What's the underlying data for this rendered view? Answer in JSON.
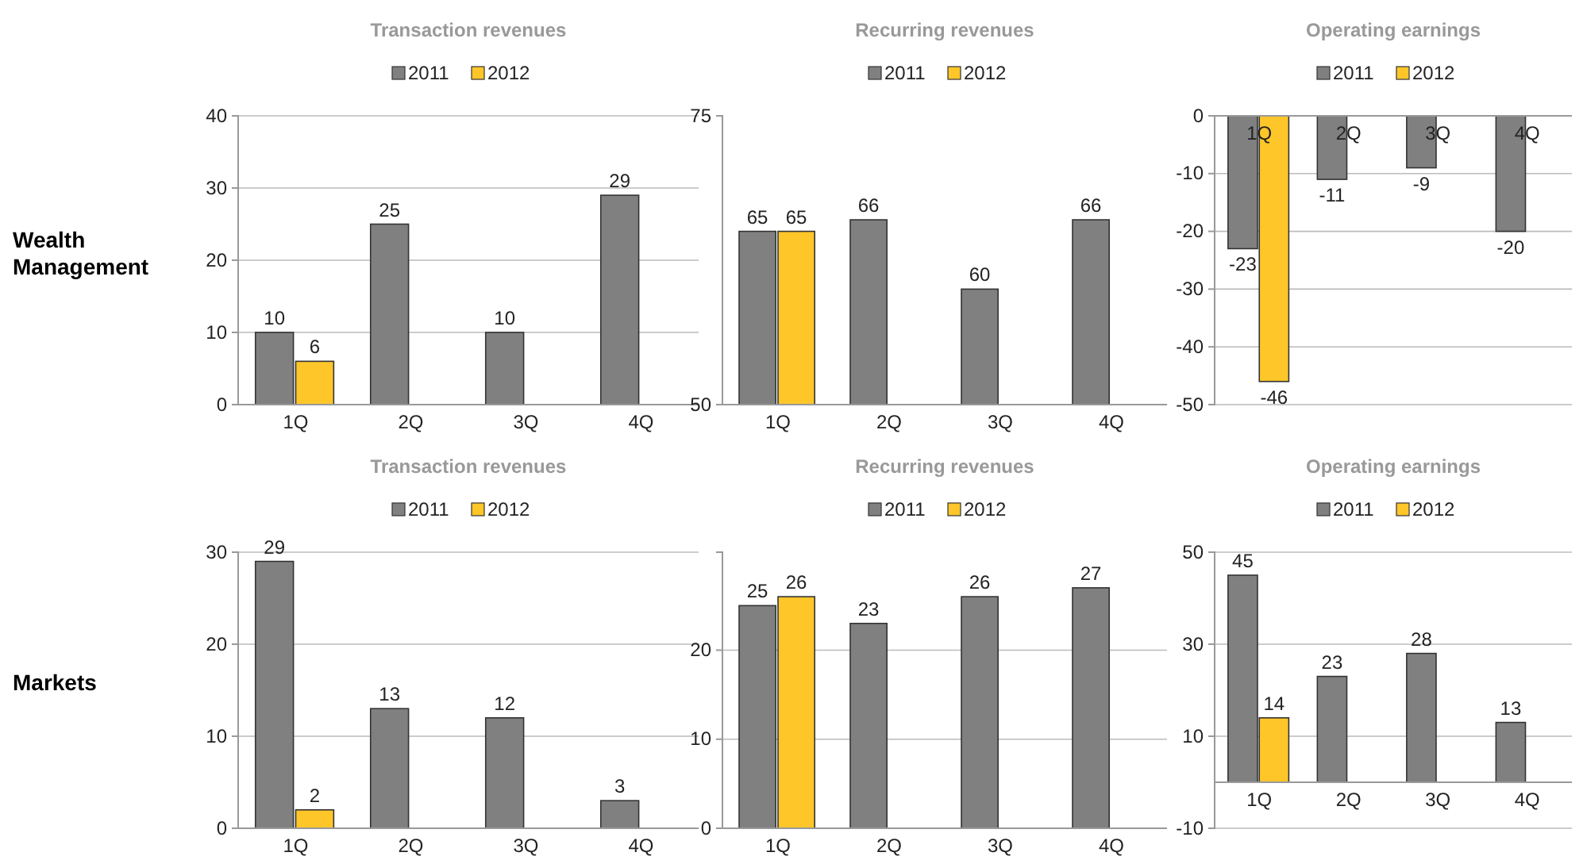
{
  "chart_data": [
    {
      "type": "bar",
      "title": "Transaction revenues",
      "categories": [
        "1Q",
        "2Q",
        "3Q",
        "4Q"
      ],
      "series": [
        {
          "name": "2011",
          "color": "#808080",
          "values": [
            10,
            25,
            10,
            29
          ]
        },
        {
          "name": "2012",
          "color": "#ffc62a",
          "values": [
            6,
            null,
            null,
            null
          ]
        }
      ],
      "ylim": [
        0,
        40
      ],
      "yticks": [
        0,
        10,
        20,
        30,
        40
      ],
      "grid": "y",
      "legend": "top",
      "data_labels": true,
      "annotations": [
        "Wealth Management"
      ]
    },
    {
      "type": "bar",
      "title": "Recurring revenues",
      "categories": [
        "1Q",
        "2Q",
        "3Q",
        "4Q"
      ],
      "series": [
        {
          "name": "2011",
          "color": "#808080",
          "values": [
            65,
            66,
            60,
            66
          ]
        },
        {
          "name": "2012",
          "color": "#ffc62a",
          "values": [
            65,
            null,
            null,
            null
          ]
        }
      ],
      "ylim": [
        50,
        75
      ],
      "yticks": [
        50,
        75
      ],
      "legend": "top",
      "data_labels": true
    },
    {
      "type": "bar",
      "title": "Operating earnings",
      "categories": [
        "1Q",
        "2Q",
        "3Q",
        "4Q"
      ],
      "series": [
        {
          "name": "2011",
          "color": "#808080",
          "values": [
            -23,
            -11,
            -9,
            -20
          ]
        },
        {
          "name": "2012",
          "color": "#ffc62a",
          "values": [
            -46,
            null,
            null,
            null
          ]
        }
      ],
      "ylim": [
        -50,
        0
      ],
      "yticks": [
        0,
        -10,
        -20,
        -30,
        -40,
        -50
      ],
      "grid": "y",
      "legend": "top",
      "data_labels": true
    },
    {
      "type": "bar",
      "title": "Transaction revenues",
      "categories": [
        "1Q",
        "2Q",
        "3Q",
        "4Q"
      ],
      "series": [
        {
          "name": "2011",
          "color": "#808080",
          "values": [
            29,
            13,
            12,
            3
          ]
        },
        {
          "name": "2012",
          "color": "#ffc62a",
          "values": [
            2,
            null,
            null,
            null
          ]
        }
      ],
      "ylim": [
        0,
        30
      ],
      "yticks": [
        0,
        10,
        20,
        30
      ],
      "grid": "y",
      "legend": "top",
      "data_labels": true,
      "annotations": [
        "Markets"
      ]
    },
    {
      "type": "bar",
      "title": "Recurring revenues",
      "categories": [
        "1Q",
        "2Q",
        "3Q",
        "4Q"
      ],
      "series": [
        {
          "name": "2011",
          "color": "#808080",
          "values": [
            25,
            23,
            26,
            27
          ]
        },
        {
          "name": "2012",
          "color": "#ffc62a",
          "values": [
            26,
            null,
            null,
            null
          ]
        }
      ],
      "ylim": [
        0,
        31
      ],
      "yticks": [
        0,
        10,
        20
      ],
      "grid": "y",
      "legend": "top",
      "data_labels": true
    },
    {
      "type": "bar",
      "title": "Operating earnings",
      "categories": [
        "1Q",
        "2Q",
        "3Q",
        "4Q"
      ],
      "series": [
        {
          "name": "2011",
          "color": "#808080",
          "values": [
            45,
            23,
            28,
            13
          ]
        },
        {
          "name": "2012",
          "color": "#ffc62a",
          "values": [
            14,
            null,
            null,
            null
          ]
        }
      ],
      "ylim": [
        -10,
        50
      ],
      "yticks": [
        -10,
        10,
        30,
        50
      ],
      "grid": "y",
      "legend": "top",
      "data_labels": true
    }
  ]
}
